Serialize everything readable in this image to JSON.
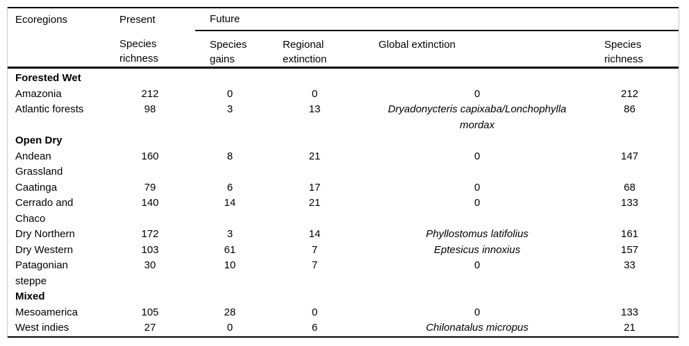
{
  "table": {
    "headers": {
      "ecoregions": "Ecoregions",
      "present": "Present",
      "future": "Future",
      "present_species_richness": "Species\nrichness",
      "species_gains": "Species\ngains",
      "regional_extinction": "Regional\nextinction",
      "global_extinction": "Global extinction",
      "future_species_richness": "Species\nrichness"
    },
    "groups": [
      {
        "label": "Forested Wet",
        "rows": [
          {
            "ecoregion": "Amazonia",
            "present_richness": 212,
            "species_gains": 0,
            "regional_extinction": 0,
            "global_extinction": "0",
            "global_is_species": false,
            "future_richness": 212
          },
          {
            "ecoregion": "Atlantic forests",
            "present_richness": 98,
            "species_gains": 3,
            "regional_extinction": 13,
            "global_extinction": "Dryadonycteris capixaba/Lonchophylla\nmordax",
            "global_is_species": true,
            "future_richness": 86
          }
        ]
      },
      {
        "label": "Open Dry",
        "rows": [
          {
            "ecoregion": "Andean\nGrassland",
            "present_richness": 160,
            "species_gains": 8,
            "regional_extinction": 21,
            "global_extinction": "0",
            "global_is_species": false,
            "future_richness": 147
          },
          {
            "ecoregion": "Caatinga",
            "present_richness": 79,
            "species_gains": 6,
            "regional_extinction": 17,
            "global_extinction": "0",
            "global_is_species": false,
            "future_richness": 68
          },
          {
            "ecoregion": "Cerrado and\nChaco",
            "present_richness": 140,
            "species_gains": 14,
            "regional_extinction": 21,
            "global_extinction": "0",
            "global_is_species": false,
            "future_richness": 133
          },
          {
            "ecoregion": "Dry Northern",
            "present_richness": 172,
            "species_gains": 3,
            "regional_extinction": 14,
            "global_extinction": "Phyllostomus latifolius",
            "global_is_species": true,
            "future_richness": 161
          },
          {
            "ecoregion": "Dry Western",
            "present_richness": 103,
            "species_gains": 61,
            "regional_extinction": 7,
            "global_extinction": "Eptesicus innoxius",
            "global_is_species": true,
            "future_richness": 157
          },
          {
            "ecoregion": "Patagonian\nsteppe",
            "present_richness": 30,
            "species_gains": 10,
            "regional_extinction": 7,
            "global_extinction": "0",
            "global_is_species": false,
            "future_richness": 33
          }
        ]
      },
      {
        "label": "Mixed",
        "rows": [
          {
            "ecoregion": "Mesoamerica",
            "present_richness": 105,
            "species_gains": 28,
            "regional_extinction": 0,
            "global_extinction": "0",
            "global_is_species": false,
            "future_richness": 133
          },
          {
            "ecoregion": "West indies",
            "present_richness": 27,
            "species_gains": 0,
            "regional_extinction": 6,
            "global_extinction": "Chilonatalus micropus",
            "global_is_species": true,
            "future_richness": 21
          }
        ]
      }
    ]
  }
}
